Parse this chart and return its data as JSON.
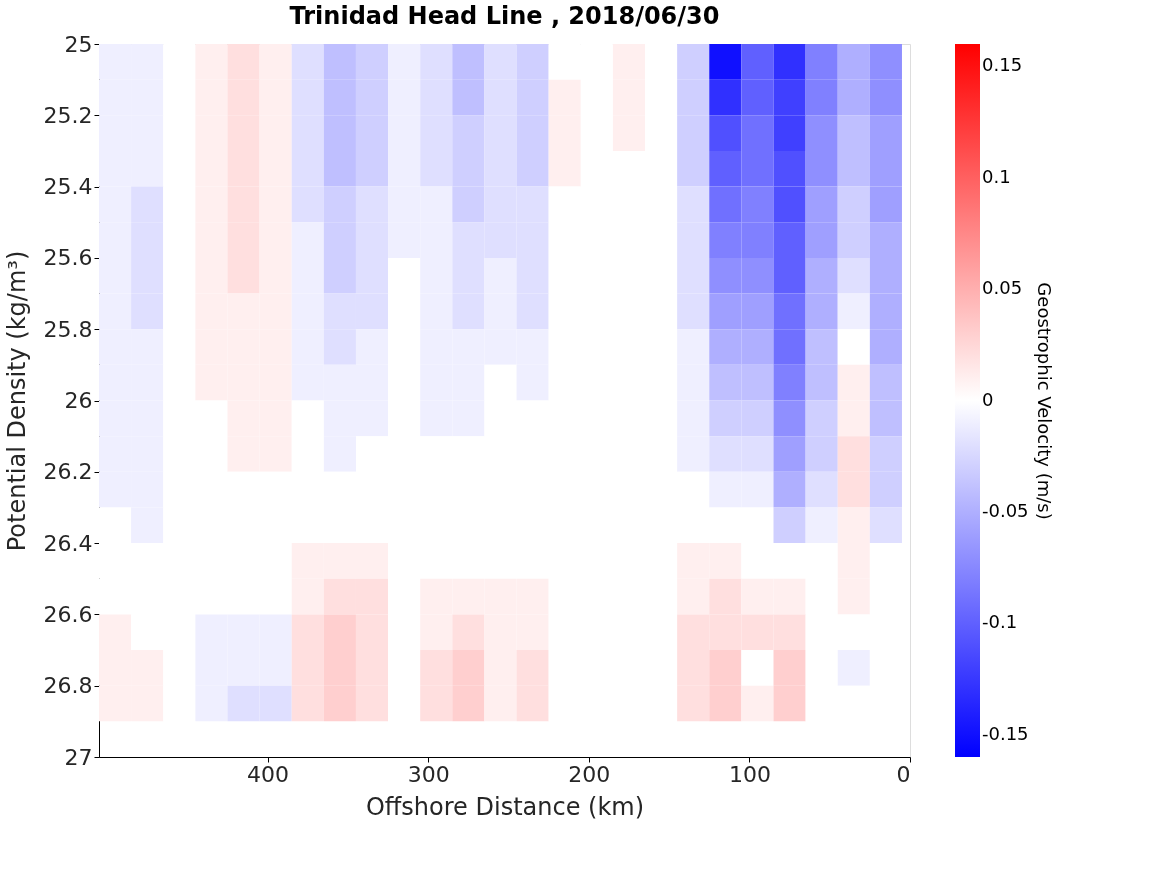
{
  "chart_data": {
    "type": "heatmap",
    "title": "Trinidad Head Line , 2018/06/30",
    "xlabel": "Offshore Distance (km)",
    "ylabel": "Potential Density (kg/m³)",
    "clabel": "Geostrophic Velocity (m/s)",
    "x": [
      495,
      475,
      455,
      435,
      415,
      395,
      375,
      355,
      335,
      315,
      295,
      275,
      255,
      235,
      215,
      195,
      175,
      155,
      135,
      115,
      95,
      75,
      55,
      35,
      15
    ],
    "y": [
      25.05,
      25.15,
      25.25,
      25.35,
      25.45,
      25.55,
      25.65,
      25.75,
      25.85,
      25.95,
      26.05,
      26.15,
      26.25,
      26.35,
      26.45,
      26.55,
      26.65,
      26.75,
      26.85
    ],
    "cells": [
      [
        -0.01,
        -0.01,
        0,
        0.01,
        0.02,
        0.01,
        -0.02,
        -0.04,
        -0.03,
        -0.01,
        -0.02,
        -0.04,
        -0.02,
        -0.03,
        0,
        0,
        0.01,
        0,
        -0.03,
        -0.15,
        -0.1,
        -0.13,
        -0.08,
        -0.05,
        -0.07
      ],
      [
        -0.01,
        -0.01,
        0,
        0.01,
        0.02,
        0.01,
        -0.02,
        -0.04,
        -0.03,
        -0.01,
        -0.02,
        -0.04,
        -0.02,
        -0.03,
        0.01,
        0,
        0.01,
        0,
        -0.03,
        -0.13,
        -0.1,
        -0.12,
        -0.08,
        -0.05,
        -0.07
      ],
      [
        -0.01,
        -0.01,
        0,
        0.01,
        0.02,
        0.01,
        -0.02,
        -0.04,
        -0.03,
        -0.01,
        -0.02,
        -0.03,
        -0.02,
        -0.03,
        0.01,
        0,
        0.01,
        0,
        -0.03,
        -0.11,
        -0.09,
        -0.12,
        -0.07,
        -0.04,
        -0.06
      ],
      [
        -0.01,
        -0.01,
        0,
        0.01,
        0.02,
        0.01,
        -0.02,
        -0.04,
        -0.03,
        -0.01,
        -0.02,
        -0.03,
        -0.02,
        -0.03,
        0.01,
        0,
        0,
        0,
        -0.03,
        -0.1,
        -0.09,
        -0.11,
        -0.07,
        -0.04,
        -0.06
      ],
      [
        -0.01,
        -0.02,
        0,
        0.01,
        0.02,
        0.01,
        -0.02,
        -0.03,
        -0.02,
        -0.01,
        -0.01,
        -0.03,
        -0.02,
        -0.02,
        0,
        0,
        0,
        0,
        -0.02,
        -0.09,
        -0.08,
        -0.11,
        -0.06,
        -0.03,
        -0.06
      ],
      [
        -0.01,
        -0.02,
        0,
        0.01,
        0.02,
        0.01,
        -0.01,
        -0.03,
        -0.02,
        -0.01,
        -0.01,
        -0.02,
        -0.02,
        -0.02,
        0,
        0,
        0,
        0,
        -0.02,
        -0.08,
        -0.08,
        -0.1,
        -0.06,
        -0.03,
        -0.05
      ],
      [
        -0.01,
        -0.02,
        0,
        0.01,
        0.02,
        0.01,
        -0.01,
        -0.03,
        -0.02,
        0,
        -0.01,
        -0.02,
        -0.01,
        -0.02,
        0,
        0,
        0,
        0,
        -0.02,
        -0.07,
        -0.07,
        -0.1,
        -0.05,
        -0.02,
        -0.05
      ],
      [
        -0.01,
        -0.02,
        0,
        0.01,
        0.01,
        0.01,
        -0.01,
        -0.02,
        -0.02,
        0,
        -0.01,
        -0.02,
        -0.01,
        -0.02,
        0,
        0,
        0,
        0,
        -0.02,
        -0.06,
        -0.06,
        -0.09,
        -0.05,
        -0.01,
        -0.05
      ],
      [
        -0.01,
        -0.01,
        0,
        0.01,
        0.01,
        0.01,
        -0.01,
        -0.02,
        -0.01,
        0,
        -0.01,
        -0.01,
        -0.01,
        -0.01,
        0,
        0,
        0,
        0,
        -0.01,
        -0.05,
        -0.05,
        -0.09,
        -0.04,
        0,
        -0.05
      ],
      [
        -0.01,
        -0.01,
        0,
        0.01,
        0.01,
        0.01,
        -0.01,
        -0.01,
        -0.01,
        0,
        -0.01,
        -0.01,
        0,
        -0.01,
        0,
        0,
        0,
        0,
        -0.01,
        -0.04,
        -0.04,
        -0.08,
        -0.04,
        0.01,
        -0.04
      ],
      [
        -0.01,
        -0.01,
        0,
        0,
        0.01,
        0.01,
        0,
        -0.01,
        -0.01,
        0,
        -0.01,
        -0.01,
        0,
        0,
        0,
        0,
        0,
        0,
        -0.01,
        -0.03,
        -0.03,
        -0.07,
        -0.03,
        0.01,
        -0.04
      ],
      [
        -0.01,
        -0.01,
        0,
        0,
        0.01,
        0.01,
        0,
        -0.01,
        0,
        0,
        0,
        0,
        0,
        0,
        0,
        0,
        0,
        0,
        -0.01,
        -0.02,
        -0.02,
        -0.06,
        -0.03,
        0.02,
        -0.03
      ],
      [
        -0.01,
        -0.01,
        0,
        0,
        0,
        0,
        0,
        0,
        0,
        0,
        0,
        0,
        0,
        0,
        0,
        0,
        0,
        0,
        0,
        -0.01,
        -0.01,
        -0.05,
        -0.02,
        0.02,
        -0.03
      ],
      [
        0,
        -0.01,
        0,
        0,
        0,
        0,
        0,
        0,
        0,
        0,
        0,
        0,
        0,
        0,
        0,
        0,
        0,
        0,
        0,
        0,
        0,
        -0.03,
        -0.01,
        0.01,
        -0.02
      ],
      [
        0,
        0,
        0,
        0,
        0,
        0,
        0.01,
        0.01,
        0.01,
        0,
        0,
        0,
        0,
        0,
        0,
        0,
        0,
        0,
        0.01,
        0.01,
        0,
        0,
        0,
        0.01,
        0
      ],
      [
        0,
        0,
        0,
        0,
        0,
        0,
        0.01,
        0.02,
        0.02,
        0,
        0.01,
        0.01,
        0.01,
        0.01,
        0,
        0,
        0,
        0,
        0.01,
        0.02,
        0.01,
        0.01,
        0,
        0.01,
        0
      ],
      [
        0.01,
        0,
        0,
        -0.01,
        -0.01,
        -0.01,
        0.02,
        0.03,
        0.02,
        0,
        0.01,
        0.02,
        0.01,
        0.01,
        0,
        0,
        0,
        0,
        0.02,
        0.02,
        0.02,
        0.02,
        0,
        0,
        0
      ],
      [
        0.01,
        0.01,
        0,
        -0.01,
        -0.01,
        -0.01,
        0.02,
        0.03,
        0.02,
        0,
        0.02,
        0.03,
        0.01,
        0.02,
        0,
        0,
        0,
        0,
        0.02,
        0.03,
        0,
        0.03,
        0,
        -0.01,
        0
      ],
      [
        0.01,
        0.01,
        0,
        -0.01,
        -0.02,
        -0.02,
        0.02,
        0.03,
        0.02,
        0,
        0.02,
        0.03,
        0.01,
        0.02,
        0,
        0,
        0,
        0,
        0.02,
        0.03,
        0.01,
        0.03,
        0,
        0,
        0
      ]
    ],
    "colors": [
      "#0000ff",
      "#ffffff",
      "#ff0000"
    ],
    "clim": [
      -0.16,
      0.16
    ],
    "cticks": [
      -0.15,
      -0.1,
      -0.05,
      0,
      0.05,
      0.1,
      0.15
    ],
    "xlim": [
      505,
      0
    ],
    "xticks": [
      400,
      300,
      200,
      100,
      0
    ],
    "ylim": [
      27,
      25
    ],
    "yticks": [
      25,
      25.2,
      25.4,
      25.6,
      25.8,
      26,
      26.2,
      26.4,
      26.6,
      26.8,
      27
    ],
    "grid": false
  }
}
